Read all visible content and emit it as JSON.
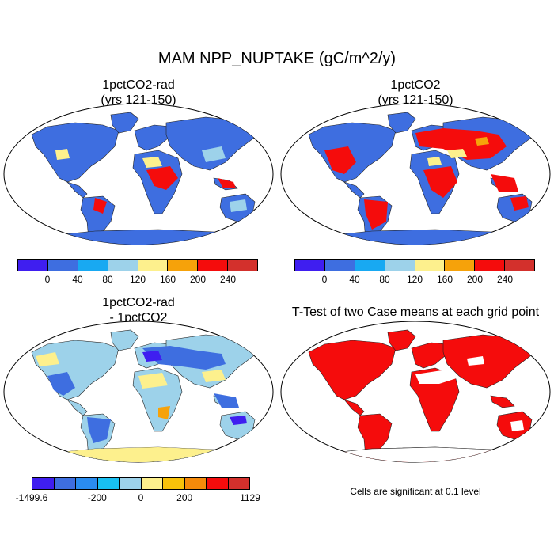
{
  "title": "MAM NPP_NUPTAKE (gC/m^2/y)",
  "panels": [
    {
      "title_line1": "1pctCO2-rad",
      "title_line2": "(yrs 121-150)"
    },
    {
      "title_line1": "1pctCO2",
      "title_line2": "(yrs 121-150)"
    },
    {
      "title_line1": "1pctCO2-rad",
      "title_line2": "- 1pctCO2"
    },
    {
      "title_line1": "T-Test of two Case means at each grid point",
      "title_line2": ""
    }
  ],
  "colorbar_abs": {
    "colors": [
      "#3f1ef0",
      "#3e6ee0",
      "#18a9f2",
      "#9dd2ea",
      "#fdf08d",
      "#f6a20a",
      "#f50c0c",
      "#d3302c"
    ],
    "tick_labels": [
      "0",
      "40",
      "80",
      "120",
      "160",
      "200",
      "240"
    ]
  },
  "colorbar_diff": {
    "colors": [
      "#3f1ef0",
      "#3e6ee0",
      "#2a8cf0",
      "#18bff2",
      "#9dd2ea",
      "#fdf08d",
      "#f8c20a",
      "#f58a0a",
      "#f50c0c",
      "#d3302c"
    ],
    "tick_labels": [
      "-1499.6",
      "-200",
      "0",
      "200",
      "1129"
    ]
  },
  "ttest_note": "Cells are significant at 0.1 level"
}
